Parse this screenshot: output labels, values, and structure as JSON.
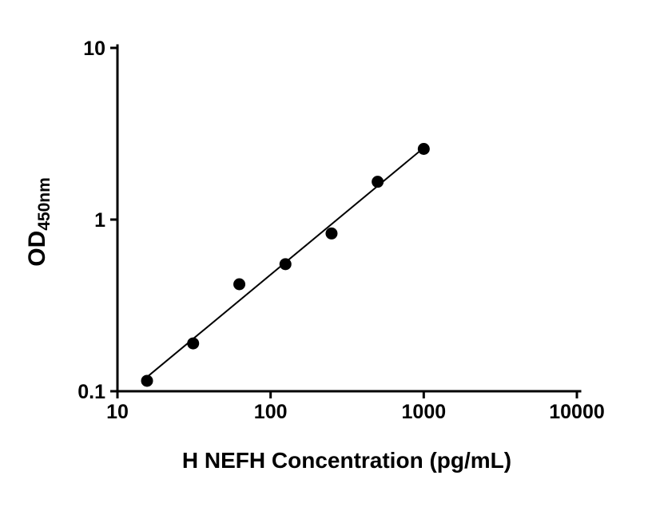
{
  "chart_data": {
    "type": "scatter",
    "title": "",
    "xlabel": "H NEFH Concentration (pg/mL)",
    "ylabel_main": "OD",
    "ylabel_sub": "450nm",
    "x_scale": "log",
    "y_scale": "log",
    "xlim": [
      10,
      10000
    ],
    "ylim": [
      0.1,
      10
    ],
    "x_ticks": [
      10,
      100,
      1000,
      10000
    ],
    "x_tick_labels": [
      "10",
      "100",
      "1000",
      "10000"
    ],
    "y_ticks": [
      0.1,
      1,
      10
    ],
    "y_tick_labels": [
      "0.1",
      "1",
      "10"
    ],
    "grid": false,
    "legend": false,
    "marker_color": "#000000",
    "line_color": "#000000",
    "axis_color": "#000000",
    "points": [
      {
        "x": 15.6,
        "y": 0.115
      },
      {
        "x": 31.2,
        "y": 0.19
      },
      {
        "x": 62.5,
        "y": 0.42
      },
      {
        "x": 125,
        "y": 0.55
      },
      {
        "x": 250,
        "y": 0.83
      },
      {
        "x": 500,
        "y": 1.66
      },
      {
        "x": 1000,
        "y": 2.58
      }
    ],
    "fit_line": {
      "type": "log-log-linear-regression",
      "x_start": 15.6,
      "x_end": 1000
    }
  }
}
